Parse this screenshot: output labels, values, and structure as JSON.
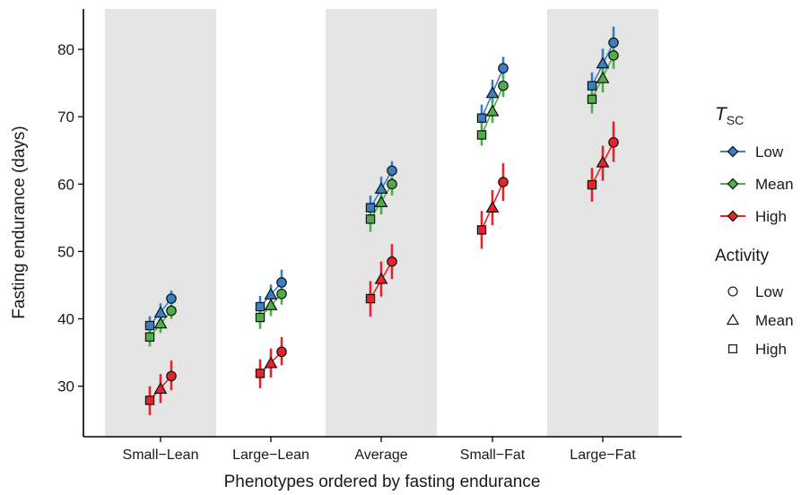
{
  "chart_data": {
    "type": "scatter",
    "xlabel": "Phenotypes ordered by fasting endurance",
    "ylabel": "Fasting endurance (days)",
    "categories": [
      "Small−Lean",
      "Large−Lean",
      "Average",
      "Small−Fat",
      "Large−Fat"
    ],
    "shaded_categories": [
      0,
      2,
      4
    ],
    "ylim": [
      22.5,
      86
    ],
    "yticks": [
      30,
      40,
      50,
      60,
      70,
      80
    ],
    "activity_levels": [
      "High",
      "Mean",
      "Low"
    ],
    "series": [
      {
        "name": "Low",
        "color": "#3a7fc1",
        "points": [
          [
            {
              "y": 39.0,
              "lo": 37.8,
              "hi": 40.4
            },
            {
              "y": 40.9,
              "lo": 39.7,
              "hi": 42.3
            },
            {
              "y": 43.0,
              "lo": 41.9,
              "hi": 44.2
            }
          ],
          [
            {
              "y": 41.8,
              "lo": 40.0,
              "hi": 43.4
            },
            {
              "y": 43.6,
              "lo": 42.0,
              "hi": 45.1
            },
            {
              "y": 45.4,
              "lo": 43.6,
              "hi": 47.3
            }
          ],
          [
            {
              "y": 56.5,
              "lo": 55.0,
              "hi": 58.3
            },
            {
              "y": 59.3,
              "lo": 57.7,
              "hi": 61.1
            },
            {
              "y": 62.0,
              "lo": 60.5,
              "hi": 63.4
            }
          ],
          [
            {
              "y": 69.8,
              "lo": 68.4,
              "hi": 71.8
            },
            {
              "y": 73.5,
              "lo": 72.0,
              "hi": 75.5
            },
            {
              "y": 77.2,
              "lo": 75.8,
              "hi": 78.9
            }
          ],
          [
            {
              "y": 74.6,
              "lo": 72.9,
              "hi": 76.6
            },
            {
              "y": 77.9,
              "lo": 76.2,
              "hi": 80.1
            },
            {
              "y": 81.0,
              "lo": 79.4,
              "hi": 83.4
            }
          ]
        ]
      },
      {
        "name": "Mean",
        "color": "#4fae4a",
        "points": [
          [
            {
              "y": 37.3,
              "lo": 35.9,
              "hi": 38.7
            },
            {
              "y": 39.3,
              "lo": 37.9,
              "hi": 40.7
            },
            {
              "y": 41.2,
              "lo": 40.0,
              "hi": 42.4
            }
          ],
          [
            {
              "y": 40.2,
              "lo": 38.5,
              "hi": 41.8
            },
            {
              "y": 42.0,
              "lo": 40.4,
              "hi": 43.5
            },
            {
              "y": 43.7,
              "lo": 42.1,
              "hi": 45.3
            }
          ],
          [
            {
              "y": 54.8,
              "lo": 52.9,
              "hi": 56.6
            },
            {
              "y": 57.3,
              "lo": 55.5,
              "hi": 59.1
            },
            {
              "y": 60.0,
              "lo": 58.3,
              "hi": 61.6
            }
          ],
          [
            {
              "y": 67.3,
              "lo": 65.7,
              "hi": 69.5
            },
            {
              "y": 70.8,
              "lo": 69.1,
              "hi": 72.6
            },
            {
              "y": 74.6,
              "lo": 72.9,
              "hi": 76.3
            }
          ],
          [
            {
              "y": 72.6,
              "lo": 70.5,
              "hi": 74.8
            },
            {
              "y": 75.7,
              "lo": 73.6,
              "hi": 77.9
            },
            {
              "y": 79.1,
              "lo": 77.1,
              "hi": 81.0
            }
          ]
        ]
      },
      {
        "name": "High",
        "color": "#e2252a",
        "points": [
          [
            {
              "y": 27.9,
              "lo": 25.7,
              "hi": 30.0
            },
            {
              "y": 29.6,
              "lo": 27.5,
              "hi": 31.8
            },
            {
              "y": 31.5,
              "lo": 29.4,
              "hi": 33.8
            }
          ],
          [
            {
              "y": 31.9,
              "lo": 29.7,
              "hi": 34.0
            },
            {
              "y": 33.4,
              "lo": 31.3,
              "hi": 35.6
            },
            {
              "y": 35.1,
              "lo": 33.1,
              "hi": 37.3
            }
          ],
          [
            {
              "y": 43.0,
              "lo": 40.3,
              "hi": 45.6
            },
            {
              "y": 45.9,
              "lo": 43.3,
              "hi": 48.5
            },
            {
              "y": 48.5,
              "lo": 45.9,
              "hi": 51.1
            }
          ],
          [
            {
              "y": 53.2,
              "lo": 50.4,
              "hi": 56.0
            },
            {
              "y": 56.5,
              "lo": 53.9,
              "hi": 59.1
            },
            {
              "y": 60.3,
              "lo": 57.5,
              "hi": 63.1
            }
          ],
          [
            {
              "y": 59.9,
              "lo": 57.4,
              "hi": 62.4
            },
            {
              "y": 63.2,
              "lo": 60.5,
              "hi": 65.7
            },
            {
              "y": 66.2,
              "lo": 63.3,
              "hi": 69.3
            }
          ]
        ]
      }
    ],
    "legend_tsc": {
      "title_main": "T",
      "title_sub": "SC",
      "items": [
        "Low",
        "Mean",
        "High"
      ]
    },
    "legend_activity": {
      "title": "Activity",
      "items": [
        {
          "label": "Low",
          "shape": "circle"
        },
        {
          "label": "Mean",
          "shape": "triangle"
        },
        {
          "label": "High",
          "shape": "square"
        }
      ]
    }
  }
}
